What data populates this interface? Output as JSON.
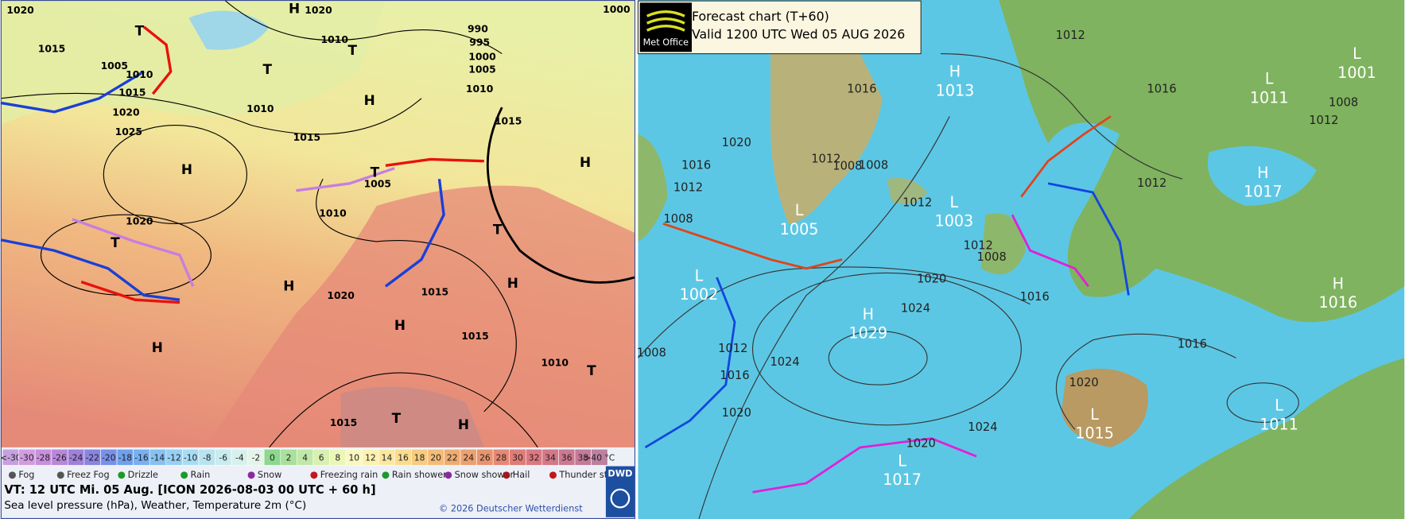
{
  "left_map": {
    "pressure_centers": [
      "T",
      "H",
      "T",
      "T",
      "H",
      "H",
      "H",
      "T",
      "T",
      "H",
      "H",
      "T",
      "H",
      "H",
      "T",
      "H",
      "T"
    ],
    "isobar_labels": [
      "1020",
      "1015",
      "1005",
      "1010",
      "1015",
      "1020",
      "1025",
      "1010",
      "1015",
      "1020",
      "1010",
      "990",
      "995",
      "1000",
      "1005",
      "1010",
      "1015",
      "1005",
      "1010",
      "1020",
      "1020",
      "1015",
      "1015",
      "1010",
      "1015",
      "1000"
    ],
    "temperature_scale": [
      "<-30",
      "-30",
      "-28",
      "-26",
      "-24",
      "-22",
      "-20",
      "-18",
      "-16",
      "-14",
      "-12",
      "-10",
      "-8",
      "-6",
      "-4",
      "-2",
      "0",
      "2",
      "4",
      "6",
      "8",
      "10",
      "12",
      "14",
      "16",
      "18",
      "20",
      "22",
      "24",
      "26",
      "28",
      "30",
      "32",
      "34",
      "36",
      "38",
      ">40 °C"
    ],
    "weather_legend": [
      "Fog",
      "Freez Fog",
      "Drizzle",
      "Rain",
      "Snow",
      "Freezing rain",
      "Rain shower",
      "Snow shower",
      "Hail",
      "Thunder storm"
    ],
    "logo": "DWD",
    "valid_time": "VT: 12 UTC Mi.  05 Aug. [ICON 2026-08-03  00 UTC + 60 h]",
    "description": "Sea level pressure (hPa), Weather, Temperature 2m (°C)",
    "copyright": "© 2026 Deutscher Wetterdienst"
  },
  "right_map": {
    "header": {
      "logo": "Met Office",
      "title": "Forecast chart (T+60)",
      "valid": "Valid 1200 UTC Wed 05 AUG 2026"
    },
    "pressure_centers": [
      {
        "letter": "H",
        "value": "1013"
      },
      {
        "letter": "L",
        "value": "1005"
      },
      {
        "letter": "L",
        "value": "1003"
      },
      {
        "letter": "L",
        "value": "1002"
      },
      {
        "letter": "H",
        "value": "1029"
      },
      {
        "letter": "L",
        "value": "1017"
      },
      {
        "letter": "L",
        "value": "1011"
      },
      {
        "letter": "L",
        "value": "1001"
      },
      {
        "letter": "H",
        "value": "1017"
      },
      {
        "letter": "H",
        "value": "1016"
      },
      {
        "letter": "L",
        "value": "1015"
      },
      {
        "letter": "L",
        "value": "1011"
      }
    ],
    "isobar_labels": [
      "1012",
      "1016",
      "1016",
      "1020",
      "1016",
      "1012",
      "1008",
      "1008",
      "1012",
      "1008",
      "1012",
      "1012",
      "1012",
      "1008",
      "1016",
      "1020",
      "1024",
      "1024",
      "1012",
      "1016",
      "1020",
      "1008",
      "1024",
      "1020",
      "1020",
      "1016",
      "1008",
      "1012"
    ]
  }
}
